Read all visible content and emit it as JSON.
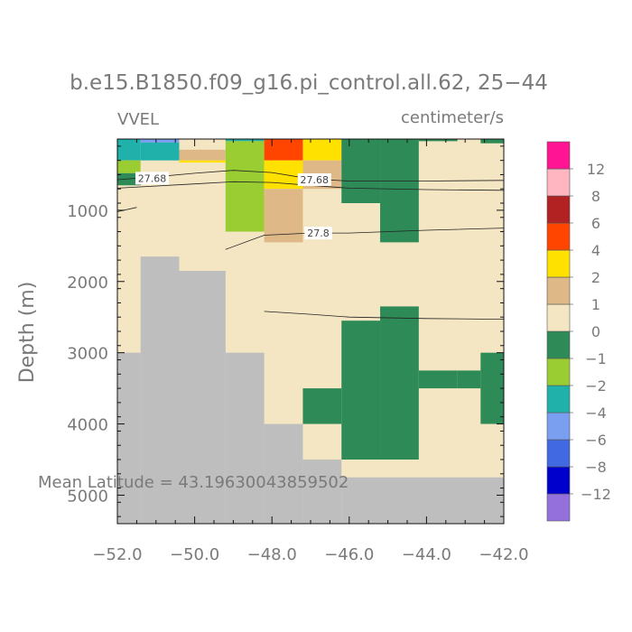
{
  "chart_data": {
    "type": "heatmap",
    "title": "b.e15.B1850.f09_g16.pi_control.all.62, 25−44",
    "left_string": "VVEL",
    "right_string": "centimeter/s",
    "ylabel": "Depth (m)",
    "xlabel": "",
    "annotation": "Mean Latitude = 43.19630043859502",
    "xlim": [
      -52.0,
      -42.0
    ],
    "ylim": [
      5400,
      0
    ],
    "x_ticks": [
      -52.0,
      -50.0,
      -48.0,
      -46.0,
      -44.0,
      -42.0
    ],
    "x_tick_labels": [
      "−52.0",
      "−50.0",
      "−48.0",
      "−46.0",
      "−44.0",
      "−42.0"
    ],
    "y_ticks": [
      1000,
      2000,
      3000,
      4000,
      5000
    ],
    "y_tick_labels": [
      "1000",
      "2000",
      "3000",
      "4000",
      "5000"
    ],
    "background_value": 0,
    "land_color": "#bebebe",
    "legend": {
      "placement": "right",
      "colors": [
        "#9370db",
        "#0000cd",
        "#4169e1",
        "#7b9ff0",
        "#20b2aa",
        "#9acd32",
        "#2e8b57",
        "#f5e6c3",
        "#deb887",
        "#ffe100",
        "#ff4500",
        "#b22222",
        "#ffb6c1",
        "#ff1493"
      ],
      "labels": [
        "−12",
        "−8",
        "−6",
        "−4",
        "−2",
        "−1",
        "0",
        "1",
        "2",
        "4",
        "6",
        "8",
        "12"
      ]
    },
    "land": [
      {
        "x0": -52.0,
        "x1": -51.4,
        "depth_top": 3000,
        "depth_bottom": 5400
      },
      {
        "x0": -51.4,
        "x1": -50.4,
        "depth_top": 1650,
        "depth_bottom": 5400
      },
      {
        "x0": -50.4,
        "x1": -49.2,
        "depth_top": 1850,
        "depth_bottom": 5400
      },
      {
        "x0": -49.2,
        "x1": -48.2,
        "depth_top": 3000,
        "depth_bottom": 5400
      },
      {
        "x0": -48.2,
        "x1": -47.2,
        "depth_top": 4000,
        "depth_bottom": 5400
      },
      {
        "x0": -47.2,
        "x1": -46.2,
        "depth_top": 4500,
        "depth_bottom": 5400
      },
      {
        "x0": -46.2,
        "x1": -42.0,
        "depth_top": 4750,
        "depth_bottom": 5400
      }
    ],
    "cells": [
      {
        "x0": -52.0,
        "x1": -51.4,
        "depth_top": 0,
        "depth_bottom": 300,
        "value": -3
      },
      {
        "x0": -51.4,
        "x1": -50.4,
        "depth_top": 0,
        "depth_bottom": 50,
        "value": -5
      },
      {
        "x0": -51.4,
        "x1": -50.4,
        "depth_top": 50,
        "depth_bottom": 300,
        "value": -3
      },
      {
        "x0": -50.4,
        "x1": -49.2,
        "depth_top": 150,
        "depth_bottom": 300,
        "value": 1.5
      },
      {
        "x0": -50.4,
        "x1": -49.2,
        "depth_top": 300,
        "depth_bottom": 330,
        "value": 3
      },
      {
        "x0": -52.0,
        "x1": -51.4,
        "depth_top": 300,
        "depth_bottom": 480,
        "value": -1.5
      },
      {
        "x0": -52.0,
        "x1": -51.4,
        "depth_top": 480,
        "depth_bottom": 650,
        "value": -0.5
      },
      {
        "x0": -49.2,
        "x1": -48.2,
        "depth_top": 0,
        "depth_bottom": 30,
        "value": -3
      },
      {
        "x0": -49.2,
        "x1": -48.2,
        "depth_top": 30,
        "depth_bottom": 1300,
        "value": -1.5
      },
      {
        "x0": -48.2,
        "x1": -47.2,
        "depth_top": 0,
        "depth_bottom": 300,
        "value": 5
      },
      {
        "x0": -48.2,
        "x1": -47.2,
        "depth_top": 300,
        "depth_bottom": 700,
        "value": 3
      },
      {
        "x0": -48.2,
        "x1": -47.2,
        "depth_top": 700,
        "depth_bottom": 1450,
        "value": 1.5
      },
      {
        "x0": -47.2,
        "x1": -46.2,
        "depth_top": 0,
        "depth_bottom": 300,
        "value": 3
      },
      {
        "x0": -47.2,
        "x1": -46.2,
        "depth_top": 300,
        "depth_bottom": 700,
        "value": 1.5
      },
      {
        "x0": -46.2,
        "x1": -45.2,
        "depth_top": 0,
        "depth_bottom": 900,
        "value": -0.5
      },
      {
        "x0": -45.2,
        "x1": -44.2,
        "depth_top": 0,
        "depth_bottom": 1450,
        "value": -0.5
      },
      {
        "x0": -44.2,
        "x1": -43.2,
        "depth_top": 0,
        "depth_bottom": 30,
        "value": -0.5
      },
      {
        "x0": -42.6,
        "x1": -42.0,
        "depth_top": 0,
        "depth_bottom": 60,
        "value": -0.5
      },
      {
        "x0": -46.2,
        "x1": -45.2,
        "depth_top": 2550,
        "depth_bottom": 4500,
        "value": -0.5
      },
      {
        "x0": -45.2,
        "x1": -44.2,
        "depth_top": 2350,
        "depth_bottom": 4500,
        "value": -0.5
      },
      {
        "x0": -47.2,
        "x1": -46.2,
        "depth_top": 3500,
        "depth_bottom": 4000,
        "value": -0.5
      },
      {
        "x0": -44.2,
        "x1": -43.2,
        "depth_top": 3250,
        "depth_bottom": 3500,
        "value": -0.5
      },
      {
        "x0": -43.2,
        "x1": -42.6,
        "depth_top": 3250,
        "depth_bottom": 3500,
        "value": -0.5
      },
      {
        "x0": -42.6,
        "x1": -42.0,
        "depth_top": 3000,
        "depth_bottom": 4000,
        "value": -0.5
      }
    ],
    "contours": [
      {
        "label": "27.68",
        "label_at": [
          -51.1,
          550
        ],
        "points": [
          [
            -52.0,
            570
          ],
          [
            -51.0,
            530
          ],
          [
            -50.0,
            480
          ],
          [
            -49.0,
            440
          ],
          [
            -48.0,
            470
          ],
          [
            -47.0,
            560
          ],
          [
            -46.0,
            590
          ],
          [
            -44.0,
            590
          ],
          [
            -42.0,
            580
          ]
        ]
      },
      {
        "label": "27.68",
        "label_at": [
          -46.9,
          570
        ],
        "points": [
          [
            -52.0,
            690
          ],
          [
            -50.0,
            630
          ],
          [
            -49.0,
            600
          ],
          [
            -48.0,
            610
          ],
          [
            -47.0,
            650
          ],
          [
            -46.0,
            690
          ],
          [
            -44.0,
            710
          ],
          [
            -42.0,
            720
          ]
        ]
      },
      {
        "label": "27.8",
        "label_at": [
          -46.8,
          1320
        ],
        "points": [
          [
            -49.2,
            1550
          ],
          [
            -48.2,
            1350
          ],
          [
            -47.0,
            1320
          ],
          [
            -46.0,
            1320
          ],
          [
            -44.0,
            1280
          ],
          [
            -42.0,
            1250
          ]
        ]
      },
      {
        "label": "",
        "label_at": [],
        "points": [
          [
            -52.0,
            1020
          ],
          [
            -51.5,
            960
          ]
        ]
      },
      {
        "label": "",
        "label_at": [],
        "points": [
          [
            -48.2,
            2420
          ],
          [
            -47.0,
            2460
          ],
          [
            -46.0,
            2500
          ],
          [
            -44.0,
            2520
          ],
          [
            -42.0,
            2530
          ]
        ]
      }
    ]
  }
}
